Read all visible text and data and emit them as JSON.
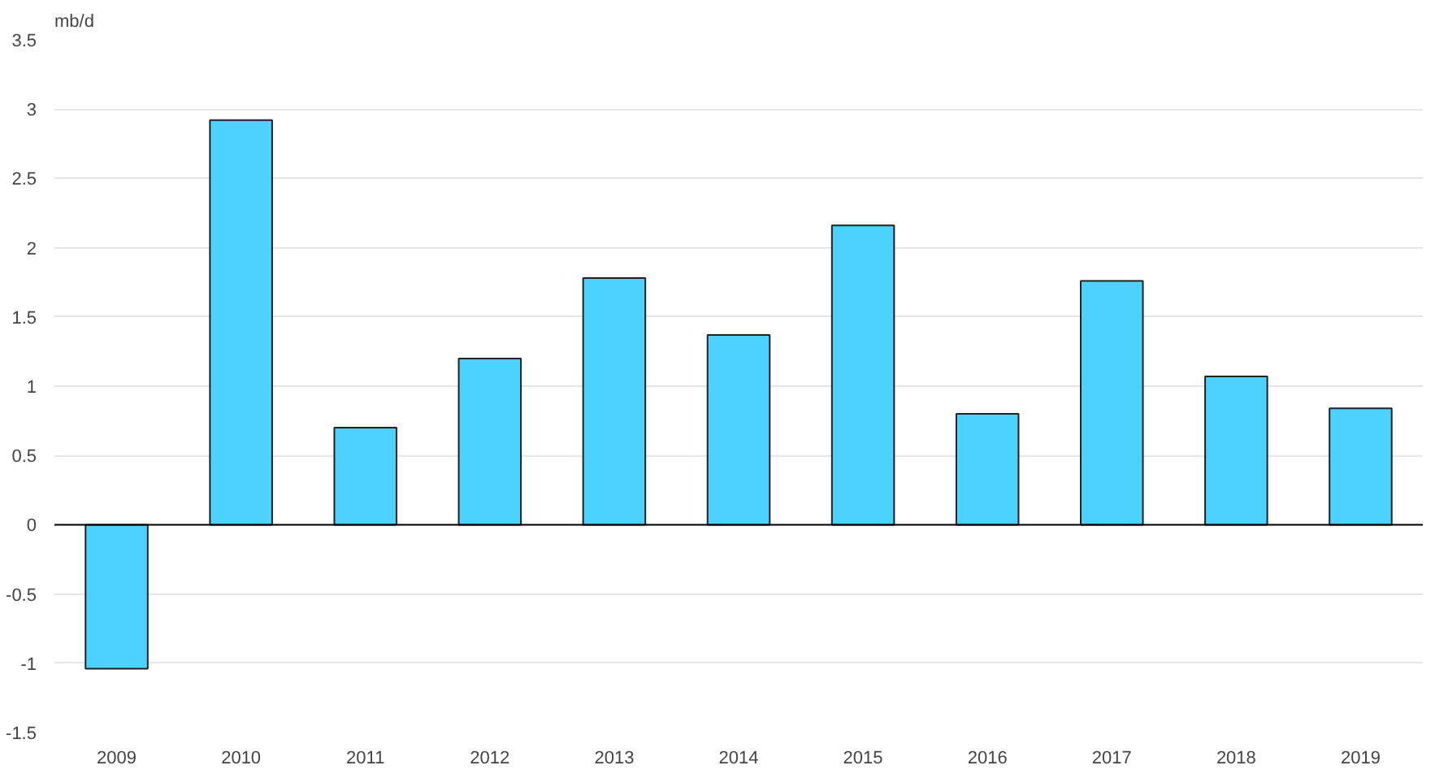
{
  "chart_data": {
    "type": "bar",
    "ylabel": "mb/d",
    "categories": [
      "2009",
      "2010",
      "2011",
      "2012",
      "2013",
      "2014",
      "2015",
      "2016",
      "2017",
      "2018",
      "2019"
    ],
    "values": [
      -1.04,
      2.92,
      0.7,
      1.2,
      1.78,
      1.37,
      2.16,
      0.8,
      1.76,
      1.07,
      0.84
    ],
    "color": "#4dd2ff",
    "ylim": [
      -1.5,
      3.5
    ],
    "yticks": [
      -1.5,
      -1,
      -0.5,
      0,
      0.5,
      1,
      1.5,
      2,
      2.5,
      3,
      3.5
    ],
    "grid": "y"
  }
}
